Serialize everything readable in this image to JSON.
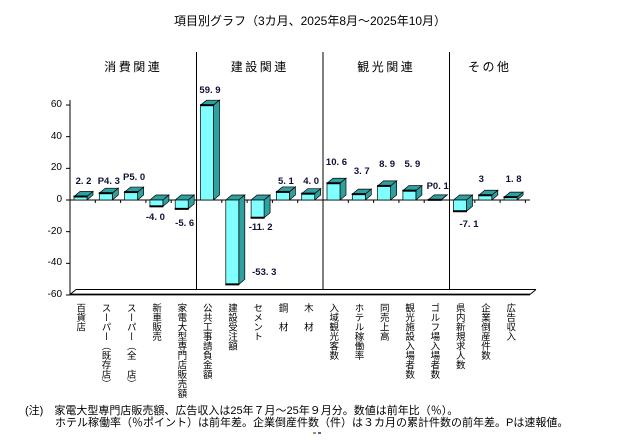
{
  "title": "項目別グラフ（3カ月、2025年8月～2025年10月）",
  "note": {
    "line1": "(注)　家電大型専門店販売額、広告収入は25年７月～25年９月分。数値は前年比（％）。",
    "line2": "ホテル稼働率（％ポイント）は前年差。企業倒産件数（件）は３カ月の累計件数の前年差。Pは速報値。"
  },
  "chart_data": {
    "type": "bar",
    "ylim": [
      -60,
      60
    ],
    "yticks": [
      60,
      40,
      20,
      0,
      -20,
      -40,
      -60
    ],
    "grid": false,
    "legend": false,
    "groups": [
      {
        "label": "消費関連",
        "items": [
          {
            "label": "百貨店",
            "value": 2.2,
            "display": "2. 2"
          },
          {
            "label": "スーパー（既存店）",
            "value": 4.3,
            "display": "P4. 3"
          },
          {
            "label": "スーパー（全　店）",
            "value": 5.0,
            "display": "P5. 0"
          },
          {
            "label": "新車販売",
            "value": -4.0,
            "display": "-4. 0"
          },
          {
            "label": "家電大型専門店販売額",
            "value": -5.6,
            "display": "-5. 6"
          }
        ]
      },
      {
        "label": "建設関連",
        "items": [
          {
            "label": "公共工事請負金額",
            "value": 59.9,
            "display": "59. 9"
          },
          {
            "label": "建設受注額",
            "value": -53.3,
            "display": "-53. 3"
          },
          {
            "label": "セメント",
            "value": -11.2,
            "display": "-11. 2"
          },
          {
            "label": "鋼　材",
            "value": 5.1,
            "display": "5. 1"
          },
          {
            "label": "木　材",
            "value": 4.0,
            "display": "4. 0"
          }
        ]
      },
      {
        "label": "観光関連",
        "items": [
          {
            "label": "入域観光客数",
            "value": 10.6,
            "display": "10. 6"
          },
          {
            "label": "ホテル稼働率",
            "value": 3.7,
            "display": "3. 7"
          },
          {
            "label": "同売上高",
            "value": 8.9,
            "display": "8. 9"
          },
          {
            "label": "観光施設入場者数",
            "value": 5.9,
            "display": "5. 9"
          },
          {
            "label": "ゴルフ場入場者数",
            "value": 0.1,
            "display": "P0. 1"
          }
        ]
      },
      {
        "label": "その他",
        "items": [
          {
            "label": "県内新規求人数",
            "value": -7.1,
            "display": "-7. 1"
          },
          {
            "label": "企業倒産件数",
            "value": 3,
            "display": "3"
          },
          {
            "label": "広告収入",
            "value": 1.8,
            "display": "1. 8"
          }
        ]
      }
    ],
    "colors": {
      "bar_front": "#7FFFFF",
      "bar_side": "#2FA0A0",
      "bar_top": "#2FA0A0",
      "outline": "#000000",
      "value_label": "#101035"
    }
  }
}
